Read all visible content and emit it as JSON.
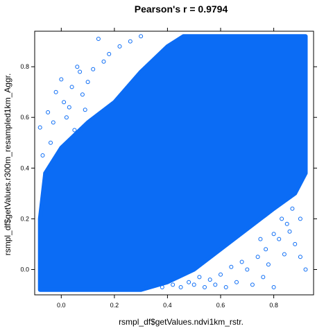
{
  "chart_data": {
    "type": "scatter",
    "title": "Pearson's r = 0.9794",
    "xlabel": "rsmpl_df$getValues.ndvi1km_rstr.",
    "ylabel": "rsmpl_df$getValues.r300m_resampled1km_Aggr.",
    "xlim": [
      -0.1,
      0.95
    ],
    "ylim": [
      -0.1,
      0.94
    ],
    "x_ticks": [
      0.0,
      0.2,
      0.4,
      0.6,
      0.8
    ],
    "x_tick_labels": [
      "0.0",
      "0.2",
      "0.4",
      "0.6",
      "0.8"
    ],
    "y_ticks": [
      0.0,
      0.2,
      0.4,
      0.6,
      0.8
    ],
    "y_tick_labels": [
      "0.0",
      "0.2",
      "0.4",
      "0.6",
      "0.8"
    ],
    "grid": false,
    "marker": "open-circle",
    "point_color": "#0b6cf5",
    "data_range": {
      "x": [
        -0.08,
        0.92
      ],
      "y": [
        -0.08,
        0.92
      ]
    },
    "dense_region": [
      [
        -0.08,
        -0.08
      ],
      [
        -0.08,
        0.2
      ],
      [
        -0.06,
        0.38
      ],
      [
        0.0,
        0.48
      ],
      [
        0.1,
        0.58
      ],
      [
        0.2,
        0.66
      ],
      [
        0.3,
        0.78
      ],
      [
        0.4,
        0.88
      ],
      [
        0.46,
        0.92
      ],
      [
        0.92,
        0.92
      ],
      [
        0.92,
        0.38
      ],
      [
        0.88,
        0.3
      ],
      [
        0.8,
        0.24
      ],
      [
        0.7,
        0.16
      ],
      [
        0.6,
        0.08
      ],
      [
        0.5,
        0.0
      ],
      [
        0.4,
        -0.05
      ],
      [
        0.3,
        -0.08
      ]
    ],
    "outlier_points": [
      [
        -0.08,
        0.56
      ],
      [
        -0.07,
        0.45
      ],
      [
        -0.06,
        0.38
      ],
      [
        -0.05,
        0.62
      ],
      [
        -0.04,
        0.5
      ],
      [
        -0.02,
        0.7
      ],
      [
        0.0,
        0.75
      ],
      [
        0.01,
        0.66
      ],
      [
        0.02,
        0.6
      ],
      [
        0.04,
        0.72
      ],
      [
        0.06,
        0.8
      ],
      [
        0.07,
        0.78
      ],
      [
        0.08,
        0.69
      ],
      [
        0.1,
        0.74
      ],
      [
        0.12,
        0.79
      ],
      [
        0.14,
        0.91
      ],
      [
        0.16,
        0.82
      ],
      [
        0.18,
        0.85
      ],
      [
        0.22,
        0.88
      ],
      [
        0.26,
        0.9
      ],
      [
        0.3,
        0.92
      ],
      [
        -0.03,
        0.58
      ],
      [
        0.03,
        0.64
      ],
      [
        0.05,
        0.55
      ],
      [
        0.09,
        0.63
      ],
      [
        0.92,
        0.0
      ],
      [
        0.9,
        0.05
      ],
      [
        0.88,
        0.1
      ],
      [
        0.86,
        0.15
      ],
      [
        0.84,
        0.06
      ],
      [
        0.82,
        0.12
      ],
      [
        0.8,
        -0.07
      ],
      [
        0.78,
        0.02
      ],
      [
        0.76,
        -0.03
      ],
      [
        0.74,
        0.05
      ],
      [
        0.72,
        -0.06
      ],
      [
        0.7,
        0.0
      ],
      [
        0.68,
        0.03
      ],
      [
        0.66,
        -0.05
      ],
      [
        0.64,
        0.01
      ],
      [
        0.62,
        -0.07
      ],
      [
        0.6,
        -0.02
      ],
      [
        0.58,
        -0.06
      ],
      [
        0.56,
        -0.04
      ],
      [
        0.54,
        -0.07
      ],
      [
        0.52,
        -0.03
      ],
      [
        0.5,
        -0.06
      ],
      [
        0.48,
        -0.05
      ],
      [
        0.45,
        -0.07
      ],
      [
        0.42,
        -0.06
      ],
      [
        0.38,
        -0.07
      ],
      [
        0.35,
        -0.06
      ],
      [
        0.32,
        -0.07
      ],
      [
        0.9,
        0.2
      ],
      [
        0.87,
        0.24
      ],
      [
        0.85,
        0.18
      ],
      [
        0.83,
        0.2
      ],
      [
        0.8,
        0.14
      ],
      [
        0.77,
        0.08
      ],
      [
        0.75,
        0.12
      ]
    ]
  }
}
